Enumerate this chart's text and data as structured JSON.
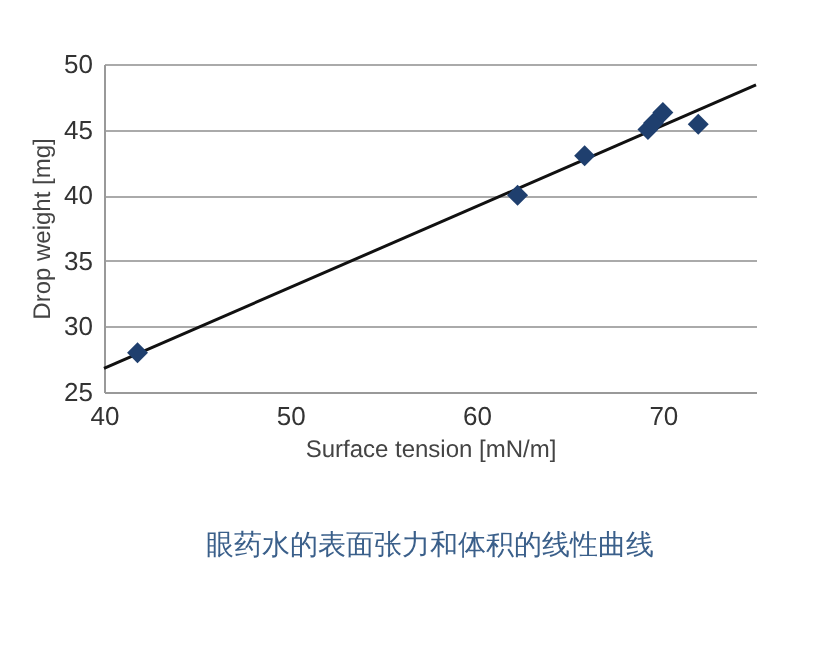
{
  "chart_data": {
    "type": "scatter",
    "xlabel": "Surface tension [mN/m]",
    "ylabel": "Drop weight [mg]",
    "annotations": [
      "眼药水的表面张力和体积的线性曲线"
    ],
    "xlim": [
      40,
      75
    ],
    "xticks": [
      40,
      50,
      60,
      70
    ],
    "ylim": [
      25,
      50
    ],
    "yticks": [
      25,
      30,
      35,
      40,
      45,
      50
    ],
    "grid": "y",
    "series": [
      {
        "type": "scatter",
        "marker": "diamond",
        "color": "#1f3f6e",
        "x": [
          41.8,
          62.2,
          65.8,
          69.2,
          69.5,
          70,
          71.9
        ],
        "values": [
          28,
          40,
          43,
          45,
          45.5,
          46.3,
          45.4
        ]
      },
      {
        "type": "line",
        "marker": "none",
        "color": "#111111",
        "line_style": "solid",
        "x": [
          40,
          75
        ],
        "values": [
          26.8,
          48.4
        ]
      }
    ]
  }
}
